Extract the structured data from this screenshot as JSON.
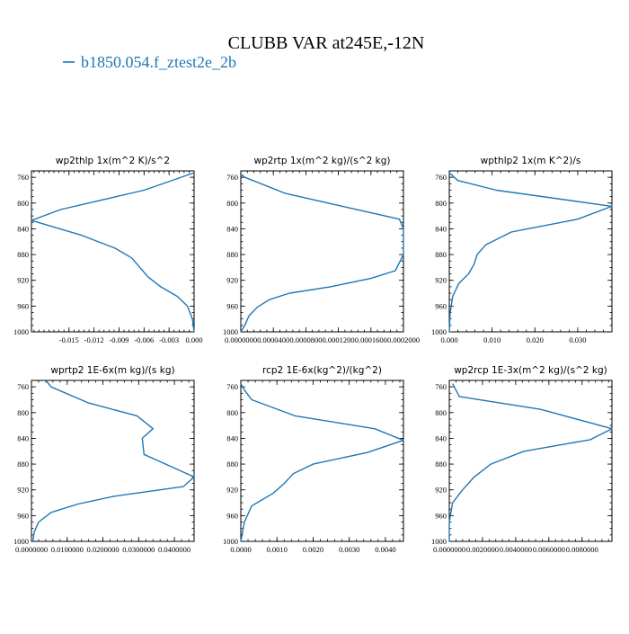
{
  "title": "CLUBB VAR at245E,-12N",
  "legend": {
    "label": "b1850.054.f_ztest2e_2b",
    "color": "#1f77b4"
  },
  "chart_data": [
    {
      "type": "line",
      "title": "wp2thlp  1x(m^2 K)/s^2",
      "xlim": [
        -0.0195,
        0.0
      ],
      "ylim": [
        1000,
        750
      ],
      "x_ticks": [
        -0.015,
        -0.012,
        -0.009,
        -0.006,
        -0.003,
        0.0
      ],
      "x_tick_labels": [
        "-0.015",
        "-0.012",
        "-0.009",
        "-0.006",
        "-0.003",
        "0.000"
      ],
      "y_ticks": [
        760,
        800,
        840,
        880,
        920,
        960,
        1000
      ],
      "y_tick_labels": [
        "760",
        "800",
        "840",
        "880",
        "920",
        "960",
        "1000"
      ],
      "series": [
        {
          "color": "#1f77b4",
          "x": [
            0.0,
            -0.006,
            -0.016,
            -0.0195,
            -0.0135,
            -0.0095,
            -0.0075,
            -0.0065,
            -0.0055,
            -0.004,
            -0.002,
            -0.0008,
            -0.0002,
            0.0
          ],
          "y": [
            753,
            780,
            810,
            827,
            850,
            870,
            885,
            900,
            915,
            930,
            945,
            960,
            980,
            1000
          ]
        }
      ]
    },
    {
      "type": "line",
      "title": "wp2rtp  1x(m^2 kg)/(s^2 kg)",
      "xlim": [
        0.0,
        0.0002
      ],
      "ylim": [
        1000,
        750
      ],
      "x_ticks": [
        0.0,
        4e-05,
        8e-05,
        0.00012,
        0.00016,
        0.0002
      ],
      "x_tick_labels": [
        "0.0000000",
        "0.0000400",
        "0.0000800",
        "0.0001200",
        "0.0001600",
        "0.0002000"
      ],
      "y_ticks": [
        760,
        800,
        840,
        880,
        920,
        960,
        1000
      ],
      "y_tick_labels": [
        "760",
        "800",
        "840",
        "880",
        "920",
        "960",
        "1000"
      ],
      "series": [
        {
          "color": "#1f77b4",
          "x": [
            0.0,
            5e-06,
            5.5e-05,
            0.000125,
            0.000195,
            0.0002,
            0.0002,
            0.00019,
            0.00016,
            0.00011,
            6e-05,
            3.5e-05,
            2e-05,
            1e-05,
            5e-06,
            0.0
          ],
          "y": [
            755,
            760,
            785,
            805,
            825,
            840,
            880,
            905,
            917,
            930,
            940,
            950,
            962,
            975,
            990,
            1000
          ]
        }
      ]
    },
    {
      "type": "line",
      "title": "wpthlp2  1x(m K^2)/s",
      "xlim": [
        0.0,
        0.038
      ],
      "ylim": [
        1000,
        750
      ],
      "x_ticks": [
        0.0,
        0.01,
        0.02,
        0.03
      ],
      "x_tick_labels": [
        "0.000",
        "0.010",
        "0.020",
        "0.030"
      ],
      "y_ticks": [
        760,
        800,
        840,
        880,
        920,
        960,
        1000
      ],
      "y_tick_labels": [
        "760",
        "800",
        "840",
        "880",
        "920",
        "960",
        "1000"
      ],
      "series": [
        {
          "color": "#1f77b4",
          "x": [
            0.0,
            0.002,
            0.011,
            0.038,
            0.03,
            0.0145,
            0.0085,
            0.0065,
            0.0058,
            0.0045,
            0.0022,
            0.0008,
            0.0002,
            0.0
          ],
          "y": [
            753,
            765,
            780,
            805,
            825,
            845,
            865,
            880,
            895,
            910,
            925,
            945,
            970,
            1000
          ]
        }
      ]
    },
    {
      "type": "line",
      "title": "wprtp2  1E-6x(m kg)/(s kg)",
      "xlim": [
        0.0,
        0.0455
      ],
      "ylim": [
        1000,
        750
      ],
      "x_ticks": [
        0.0,
        0.01,
        0.02,
        0.03,
        0.04
      ],
      "x_tick_labels": [
        "0.0000000",
        "0.0100000",
        "0.0200000",
        "0.0300000",
        "0.0400000"
      ],
      "y_ticks": [
        760,
        800,
        840,
        880,
        920,
        960,
        1000
      ],
      "y_tick_labels": [
        "760",
        "800",
        "840",
        "880",
        "920",
        "960",
        "1000"
      ],
      "series": [
        {
          "color": "#1f77b4",
          "x": [
            0.004,
            0.0055,
            0.016,
            0.0295,
            0.034,
            0.031,
            0.0315,
            0.0455,
            0.0425,
            0.023,
            0.013,
            0.0055,
            0.002,
            0.0008,
            0.0005,
            0.0005
          ],
          "y": [
            750,
            760,
            785,
            805,
            825,
            840,
            865,
            900,
            915,
            930,
            942,
            955,
            970,
            985,
            995,
            1000
          ]
        }
      ]
    },
    {
      "type": "line",
      "title": "rcp2  1E-6x(kg^2)/(kg^2)",
      "xlim": [
        0.0,
        0.0045
      ],
      "ylim": [
        1000,
        750
      ],
      "x_ticks": [
        0.0,
        0.001,
        0.002,
        0.003,
        0.004
      ],
      "x_tick_labels": [
        "0.0000",
        "0.0010",
        "0.0020",
        "0.0030",
        "0.0040"
      ],
      "y_ticks": [
        760,
        800,
        840,
        880,
        920,
        960,
        1000
      ],
      "y_tick_labels": [
        "760",
        "800",
        "840",
        "880",
        "920",
        "960",
        "1000"
      ],
      "series": [
        {
          "color": "#1f77b4",
          "x": [
            0.0,
            0.0001,
            0.0003,
            0.0015,
            0.0037,
            0.0045,
            0.0035,
            0.002,
            0.00145,
            0.0012,
            0.0009,
            0.0003,
            0.0001,
            0.0
          ],
          "y": [
            755,
            765,
            780,
            805,
            825,
            843,
            862,
            880,
            895,
            910,
            925,
            945,
            970,
            1000
          ]
        }
      ]
    },
    {
      "type": "line",
      "title": "wp2rcp  1E-3x(m^2 kg)/(s^2 kg)",
      "xlim": [
        0.0,
        0.0098
      ],
      "ylim": [
        1000,
        750
      ],
      "x_ticks": [
        0.0,
        0.002,
        0.004,
        0.006,
        0.008
      ],
      "x_tick_labels": [
        "0.0000000",
        "0.0020000",
        "0.0040000",
        "0.0060000",
        "0.0080000"
      ],
      "y_ticks": [
        760,
        800,
        840,
        880,
        920,
        960,
        1000
      ],
      "y_tick_labels": [
        "760",
        "800",
        "840",
        "880",
        "920",
        "960",
        "1000"
      ],
      "series": [
        {
          "color": "#1f77b4",
          "x": [
            0.0002,
            0.0006,
            0.0055,
            0.0098,
            0.0085,
            0.0045,
            0.0025,
            0.0015,
            0.0008,
            0.0002,
            0.0,
            0.0
          ],
          "y": [
            755,
            775,
            795,
            825,
            842,
            860,
            880,
            900,
            920,
            940,
            970,
            1000
          ]
        }
      ]
    }
  ]
}
